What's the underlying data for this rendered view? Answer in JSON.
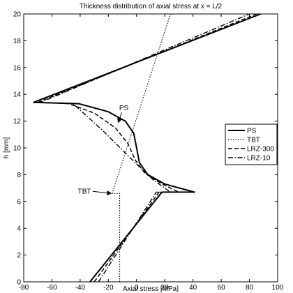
{
  "chart_data": {
    "type": "line",
    "title": "Thickness distribution of axial stress at x = L/2",
    "xlabel": "Axial stress [MPa]",
    "ylabel": "h [mm]",
    "xlim": [
      -80,
      100
    ],
    "ylim": [
      0,
      20
    ],
    "xticks": [
      -80,
      -60,
      -40,
      -20,
      0,
      20,
      40,
      60,
      80,
      100
    ],
    "yticks": [
      0,
      2,
      4,
      6,
      8,
      10,
      12,
      14,
      16,
      18,
      20
    ],
    "grid": false,
    "legend_position": "right",
    "series": [
      {
        "name": "PS",
        "style": "solid",
        "points": [
          [
            -33,
            0
          ],
          [
            18,
            6.7
          ],
          [
            41,
            6.7
          ],
          [
            20,
            7.3
          ],
          [
            8,
            8.0
          ],
          [
            2,
            8.9
          ],
          [
            0,
            10.0
          ],
          [
            -2,
            11.1
          ],
          [
            -8,
            12.0
          ],
          [
            -20,
            12.7
          ],
          [
            -41,
            13.3
          ],
          [
            -73,
            13.4
          ],
          [
            88,
            20
          ]
        ]
      },
      {
        "name": "TBT",
        "style": "dotted",
        "points": [
          [
            -12,
            0
          ],
          [
            -12,
            6.6
          ],
          [
            -17,
            6.6
          ],
          [
            -17,
            6.7
          ],
          [
            24,
            20
          ]
        ]
      },
      {
        "name": "LRZ-300",
        "style": "dashed",
        "points": [
          [
            -30,
            0
          ],
          [
            16,
            6.7
          ],
          [
            30,
            6.7
          ],
          [
            18,
            7.3
          ],
          [
            6,
            8.1
          ],
          [
            -1,
            9.1
          ],
          [
            -6,
            10.3
          ],
          [
            -15,
            11.5
          ],
          [
            -30,
            12.6
          ],
          [
            -48,
            13.3
          ],
          [
            -70,
            13.4
          ],
          [
            85,
            20
          ]
        ]
      },
      {
        "name": "LRZ-10",
        "style": "dashdot",
        "points": [
          [
            -27,
            0
          ],
          [
            14,
            6.7
          ],
          [
            24,
            6.7
          ],
          [
            12,
            7.6
          ],
          [
            -2,
            9.0
          ],
          [
            -24,
            11.3
          ],
          [
            -45,
            13.3
          ],
          [
            -68,
            13.4
          ],
          [
            80,
            20
          ]
        ]
      }
    ],
    "annotations": [
      {
        "text": "PS",
        "x": -9,
        "y": 12.8,
        "arrow_to": [
          -13,
          11.9
        ]
      },
      {
        "text": "TBT",
        "x": -37,
        "y": 6.6,
        "arrow_to": [
          -18,
          6.6
        ]
      }
    ]
  }
}
